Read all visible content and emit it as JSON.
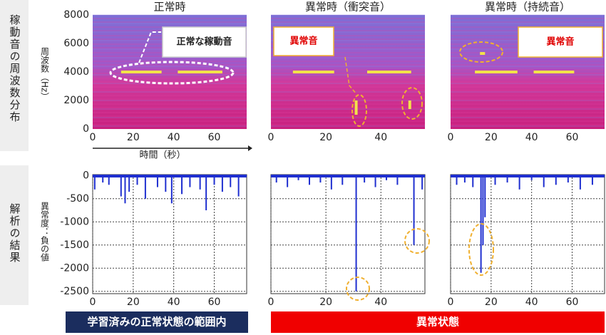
{
  "side_labels": [
    "稼動音の周波数分布",
    "解析の結果"
  ],
  "banners": [
    "学習済みの正常状態の範囲内",
    "異常状態"
  ],
  "chart_data": [
    {
      "type": "spectrogram",
      "title": "正常時",
      "ylabel": "周波数（Hz）",
      "xlabel": "時間（秒）",
      "xlim": [
        0,
        76
      ],
      "ylim": [
        0,
        8000
      ],
      "xticks": [
        0,
        20,
        40,
        60
      ],
      "yticks": [
        0,
        2000,
        4000,
        6000,
        8000
      ],
      "annotation": "正常な稼動音",
      "color": "#f2e24a",
      "segments": [
        {
          "t0": 14,
          "t1": 34,
          "f": 4000
        },
        {
          "t0": 42,
          "t1": 64,
          "f": 4000
        }
      ],
      "vsegments": []
    },
    {
      "type": "spectrogram",
      "title": "異常時（衝突音）",
      "xlim": [
        0,
        56
      ],
      "ylim": [
        0,
        8000
      ],
      "xticks": [
        0,
        20,
        40
      ],
      "annotation": "異常音",
      "color": "#f2e24a",
      "segments": [
        {
          "t0": 8,
          "t1": 23,
          "f": 4000
        },
        {
          "t0": 35,
          "t1": 51,
          "f": 4000
        }
      ],
      "vsegments": [
        {
          "t": 31,
          "f0": 1000,
          "f1": 2000
        },
        {
          "t": 50.5,
          "f0": 1400,
          "f1": 2000
        }
      ]
    },
    {
      "type": "spectrogram",
      "title": "異常時（持続音）",
      "xlim": [
        0,
        76
      ],
      "ylim": [
        0,
        8000
      ],
      "xticks": [
        0,
        20,
        40,
        60
      ],
      "annotation": "異常音",
      "color": "#f2e24a",
      "segments": [
        {
          "t0": 12,
          "t1": 33,
          "f": 4000
        },
        {
          "t0": 41,
          "t1": 61,
          "f": 4000
        },
        {
          "t0": 14.5,
          "t1": 17,
          "f": 5300
        }
      ],
      "vsegments": []
    },
    {
      "type": "spikes",
      "ylabel": "異常度：負の値",
      "xlim": [
        0,
        76
      ],
      "ylim": [
        -2550,
        20
      ],
      "xticks": [
        0,
        20,
        40,
        60
      ],
      "yticks": [
        0,
        -500,
        -1000,
        -1500,
        -2000,
        -2500
      ],
      "grid": true,
      "color": "#1f2fd0",
      "x": [
        1,
        5,
        8,
        14,
        16,
        18,
        22,
        26,
        32,
        36,
        39,
        44,
        48,
        53,
        56,
        60,
        64,
        68,
        72
      ],
      "values": [
        -300,
        -150,
        -200,
        -450,
        -600,
        -350,
        -200,
        -500,
        -250,
        -350,
        -600,
        -400,
        -250,
        -300,
        -750,
        -200,
        -350,
        -250,
        -450
      ]
    },
    {
      "type": "spikes",
      "xlim": [
        0,
        56
      ],
      "ylim": [
        -2550,
        20
      ],
      "xticks": [
        0,
        20,
        40
      ],
      "grid": true,
      "color": "#1f2fd0",
      "x": [
        2,
        6,
        10,
        14,
        18,
        22,
        26,
        31,
        34,
        38,
        42,
        46,
        52,
        55
      ],
      "values": [
        -150,
        -250,
        -100,
        -200,
        -150,
        -300,
        -200,
        -2500,
        -150,
        -250,
        -100,
        -200,
        -1500,
        -300
      ]
    },
    {
      "type": "spikes",
      "xlim": [
        0,
        76
      ],
      "ylim": [
        -2550,
        20
      ],
      "xticks": [
        0,
        20,
        40,
        60
      ],
      "grid": true,
      "color": "#1f2fd0",
      "x": [
        3,
        7,
        11,
        15,
        16,
        17,
        22,
        28,
        34,
        40,
        46,
        52,
        58,
        64,
        70
      ],
      "values": [
        -200,
        -150,
        -250,
        -2100,
        -1500,
        -900,
        -200,
        -150,
        -300,
        -100,
        -250,
        -200,
        -150,
        -300,
        -200
      ]
    }
  ]
}
